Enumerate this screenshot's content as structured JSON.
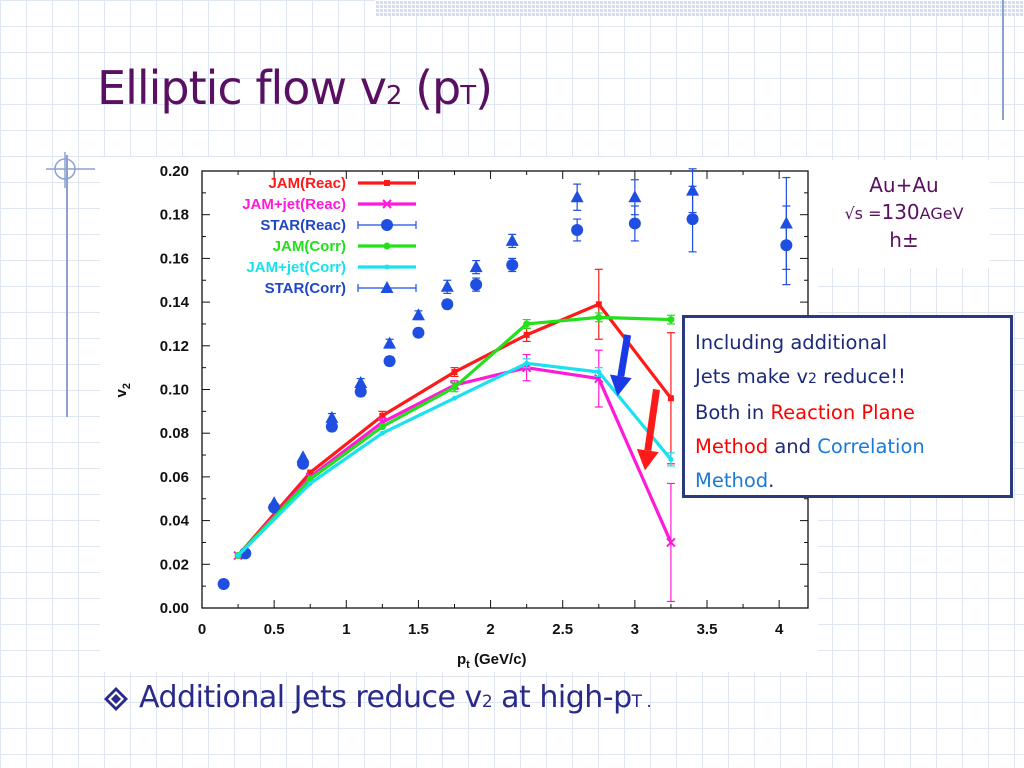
{
  "slide": {
    "title_main": "Elliptic flow v",
    "title_sub2": "2",
    "title_paren_open": "(p",
    "title_subT": "T",
    "title_paren_close": ")",
    "colors": {
      "title": "#5a1062",
      "accent_box_border": "#2a3a7a",
      "bullet_text": "#2a2a8a"
    }
  },
  "collision_box": {
    "line1": "Au+Au",
    "line2_prefix": "√s =",
    "line2_value": "130",
    "line2_unit": "AGeV",
    "line3": "h±"
  },
  "note_box": {
    "line1": "Including additional",
    "line2_prefix": "Jets make v",
    "line2_sub": "2",
    "line2_suffix": " reduce!!",
    "line3_prefix": "Both in ",
    "line3_red": "Reaction Plane",
    "line4_red": "Method",
    "line4_mid": " and ",
    "line4_blue": "Correlation",
    "line5_blue": "Method",
    "line5_end": "."
  },
  "bullet": {
    "icon": "diamond-bullet-icon",
    "text_prefix": "Additional Jets reduce v",
    "text_sub": "2",
    "text_mid": " at high-p",
    "text_subT": "T",
    "text_end": " ."
  },
  "chart_data": {
    "type": "line",
    "xlabel": "p",
    "xlabel_sub": "t",
    "xlabel_unit": " (GeV/c)",
    "ylabel": "v",
    "ylabel_sub": "2",
    "xlim": [
      0,
      4.2
    ],
    "ylim": [
      0,
      0.2
    ],
    "x_ticks": [
      "0",
      "0.5",
      "1",
      "1.5",
      "2",
      "2.5",
      "3",
      "3.5",
      "4"
    ],
    "y_ticks": [
      "0.00",
      "0.02",
      "0.04",
      "0.06",
      "0.08",
      "0.10",
      "0.12",
      "0.14",
      "0.16",
      "0.18",
      "0.20"
    ],
    "grid": false,
    "legend_position": "top-left",
    "series": [
      {
        "name": "JAM(Reac)",
        "color": "#ff1a1a",
        "marker": "square-line",
        "x": [
          0.25,
          0.75,
          1.25,
          1.75,
          2.25,
          2.75,
          3.25
        ],
        "y": [
          0.024,
          0.062,
          0.088,
          0.108,
          0.125,
          0.139,
          0.096
        ],
        "err": [
          0.001,
          0.001,
          0.002,
          0.002,
          0.003,
          0.016,
          0.03
        ]
      },
      {
        "name": "JAM+jet(Reac)",
        "color": "#ff1ad9",
        "marker": "cross-line",
        "x": [
          0.25,
          0.75,
          1.25,
          1.75,
          2.25,
          2.75,
          3.25
        ],
        "y": [
          0.024,
          0.06,
          0.085,
          0.102,
          0.11,
          0.105,
          0.03
        ],
        "err": [
          0.001,
          0.001,
          0.002,
          0.002,
          0.006,
          0.013,
          0.027
        ]
      },
      {
        "name": "STAR(Reac)",
        "color": "#1f4fe0",
        "marker": "circle-errorbar",
        "x": [
          0.15,
          0.3,
          0.5,
          0.7,
          0.9,
          1.1,
          1.3,
          1.5,
          1.7,
          1.9,
          2.15,
          2.6,
          3.0,
          3.4,
          4.05
        ],
        "y": [
          0.011,
          0.025,
          0.046,
          0.066,
          0.083,
          0.099,
          0.113,
          0.126,
          0.139,
          0.148,
          0.157,
          0.173,
          0.176,
          0.178,
          0.166
        ],
        "err": [
          0.001,
          0.001,
          0.001,
          0.001,
          0.002,
          0.002,
          0.002,
          0.002,
          0.002,
          0.003,
          0.003,
          0.005,
          0.008,
          0.015,
          0.018
        ]
      },
      {
        "name": "JAM(Corr)",
        "color": "#22e01a",
        "marker": "circle-line",
        "x": [
          0.25,
          0.75,
          1.25,
          1.75,
          2.25,
          2.75,
          3.25
        ],
        "y": [
          0.024,
          0.059,
          0.083,
          0.101,
          0.13,
          0.133,
          0.132
        ],
        "err": [
          0.001,
          0.001,
          0.001,
          0.002,
          0.002,
          0.002,
          0.002
        ]
      },
      {
        "name": "JAM+jet(Corr)",
        "color": "#1ae0f0",
        "marker": "small-circle-line",
        "x": [
          0.25,
          0.75,
          1.25,
          1.75,
          2.25,
          2.75,
          3.25
        ],
        "y": [
          0.024,
          0.057,
          0.08,
          0.096,
          0.112,
          0.108,
          0.068
        ],
        "err": [
          0.001,
          0.001,
          0.001,
          0.001,
          0.002,
          0.002,
          0.003
        ]
      },
      {
        "name": "STAR(Corr)",
        "color": "#1f4fe0",
        "marker": "triangle-errorbar",
        "x": [
          0.5,
          0.7,
          0.9,
          1.1,
          1.3,
          1.5,
          1.7,
          1.9,
          2.15,
          2.6,
          3.0,
          3.4,
          4.05
        ],
        "y": [
          0.048,
          0.069,
          0.087,
          0.103,
          0.121,
          0.134,
          0.147,
          0.156,
          0.168,
          0.188,
          0.188,
          0.191,
          0.176
        ],
        "err": [
          0.001,
          0.001,
          0.002,
          0.002,
          0.002,
          0.002,
          0.003,
          0.003,
          0.003,
          0.006,
          0.008,
          0.01,
          0.021
        ]
      }
    ],
    "annotations": [
      {
        "kind": "arrow",
        "color": "#1a3ae6",
        "from": [
          2.95,
          0.125
        ],
        "to": [
          2.88,
          0.097
        ]
      },
      {
        "kind": "arrow",
        "color": "#ff1a1a",
        "from": [
          3.15,
          0.1
        ],
        "to": [
          3.07,
          0.063
        ]
      }
    ]
  }
}
